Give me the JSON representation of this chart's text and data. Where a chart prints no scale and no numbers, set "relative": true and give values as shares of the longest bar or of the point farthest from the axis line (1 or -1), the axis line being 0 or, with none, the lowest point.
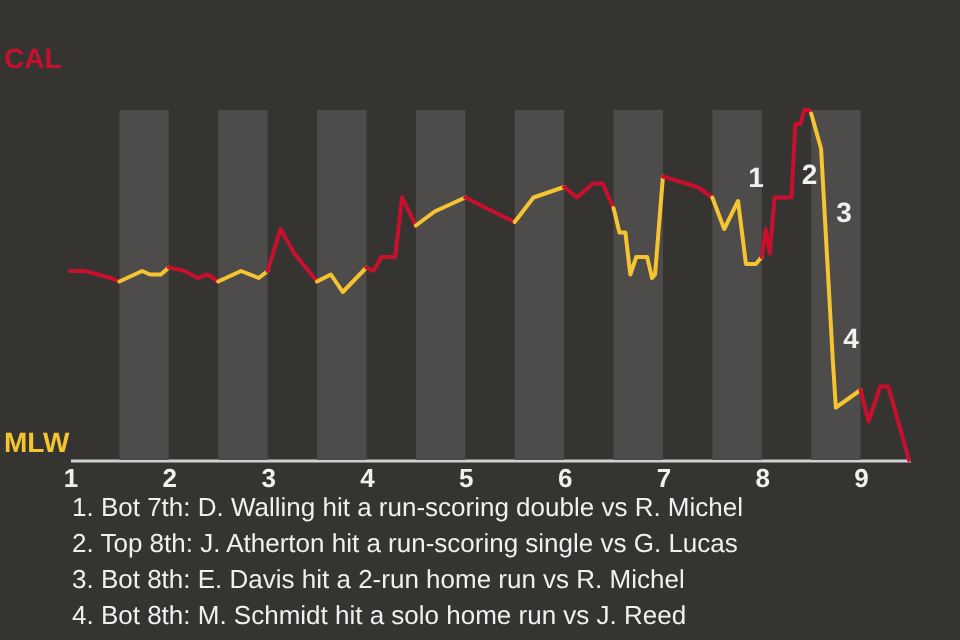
{
  "chart_data": {
    "type": "line",
    "relative": true,
    "xlim": [
      1,
      9.5
    ],
    "xticks": [
      1,
      2,
      3,
      4,
      5,
      6,
      7,
      8,
      9
    ],
    "marker": "none",
    "line_style": "solid",
    "series": [
      {
        "color": "#c8102e",
        "x": [
          1,
          1.15,
          1.41,
          1.5
        ],
        "values": [
          0.54,
          0.54,
          0.52,
          0.51
        ]
      },
      {
        "color": "#f5c431",
        "x": [
          1.5,
          1.73,
          1.81,
          1.92,
          2
        ],
        "values": [
          0.51,
          0.54,
          0.53,
          0.53,
          0.55
        ]
      },
      {
        "color": "#c8102e",
        "x": [
          2,
          2.16,
          2.29,
          2.39,
          2.5
        ],
        "values": [
          0.55,
          0.54,
          0.52,
          0.53,
          0.51
        ]
      },
      {
        "color": "#f5c431",
        "x": [
          2.5,
          2.73,
          2.91,
          3
        ],
        "values": [
          0.51,
          0.54,
          0.52,
          0.54
        ]
      },
      {
        "color": "#c8102e",
        "x": [
          3,
          3.13,
          3.27,
          3.5
        ],
        "values": [
          0.54,
          0.66,
          0.59,
          0.51
        ]
      },
      {
        "color": "#f5c431",
        "x": [
          3.5,
          3.64,
          3.76,
          4
        ],
        "values": [
          0.51,
          0.53,
          0.48,
          0.55
        ]
      },
      {
        "color": "#c8102e",
        "x": [
          4,
          4.07,
          4.15,
          4.29,
          4.36,
          4.5
        ],
        "values": [
          0.55,
          0.54,
          0.58,
          0.58,
          0.75,
          0.67
        ]
      },
      {
        "color": "#f5c431",
        "x": [
          4.5,
          4.69,
          5
        ],
        "values": [
          0.67,
          0.71,
          0.75
        ]
      },
      {
        "color": "#c8102e",
        "x": [
          5,
          5.21,
          5.5
        ],
        "values": [
          0.75,
          0.72,
          0.68
        ]
      },
      {
        "color": "#f5c431",
        "x": [
          5.5,
          5.69,
          6
        ],
        "values": [
          0.68,
          0.75,
          0.78
        ]
      },
      {
        "color": "#c8102e",
        "x": [
          6,
          6.13,
          6.29,
          6.39,
          6.5
        ],
        "values": [
          0.78,
          0.75,
          0.79,
          0.79,
          0.72
        ]
      },
      {
        "color": "#f5c431",
        "x": [
          6.5,
          6.56,
          6.62,
          6.67,
          6.73,
          6.84,
          6.89,
          6.92,
          7
        ],
        "values": [
          0.72,
          0.65,
          0.65,
          0.53,
          0.58,
          0.58,
          0.52,
          0.53,
          0.81
        ]
      },
      {
        "color": "#c8102e",
        "x": [
          7,
          7.35,
          7.5
        ],
        "values": [
          0.81,
          0.78,
          0.75
        ]
      },
      {
        "color": "#f5c431",
        "x": [
          7.5,
          7.62,
          7.76,
          7.84,
          7.94,
          8
        ],
        "values": [
          0.75,
          0.66,
          0.74,
          0.56,
          0.56,
          0.58
        ]
      },
      {
        "color": "#c8102e",
        "x": [
          8,
          8.04,
          8.08,
          8.13,
          8.3,
          8.34,
          8.39,
          8.43,
          8.48,
          8.5
        ],
        "values": [
          0.58,
          0.66,
          0.59,
          0.75,
          0.75,
          0.96,
          0.96,
          1,
          1,
          0.99
        ]
      },
      {
        "color": "#f5c431",
        "x": [
          8.5,
          8.6,
          8.72,
          8.75,
          9
        ],
        "values": [
          0.99,
          0.89,
          0.28,
          0.15,
          0.2
        ]
      },
      {
        "color": "#c8102e",
        "x": [
          9,
          9.08,
          9.2,
          9.28,
          9.49
        ],
        "values": [
          0.2,
          0.11,
          0.21,
          0.21,
          0
        ]
      }
    ],
    "bands": [
      {
        "axis": "x",
        "from": 1.5,
        "to": 2,
        "color": "#4d4c4a"
      },
      {
        "axis": "x",
        "from": 2.5,
        "to": 3,
        "color": "#4d4c4a"
      },
      {
        "axis": "x",
        "from": 3.5,
        "to": 4,
        "color": "#4d4c4a"
      },
      {
        "axis": "x",
        "from": 4.5,
        "to": 5,
        "color": "#4d4c4a"
      },
      {
        "axis": "x",
        "from": 5.5,
        "to": 6,
        "color": "#4d4c4a"
      },
      {
        "axis": "x",
        "from": 6.5,
        "to": 7,
        "color": "#4d4c4a"
      },
      {
        "axis": "x",
        "from": 7.5,
        "to": 8,
        "color": "#4d4c4a"
      },
      {
        "axis": "x",
        "from": 8.5,
        "to": 9,
        "color": "#4d4c4a"
      }
    ],
    "annotations": [
      "CAL",
      "MLW",
      {
        "text": "1",
        "x": 7.76,
        "y": 0.74
      },
      {
        "text": "2",
        "x": 8.3,
        "y": 0.75
      },
      {
        "text": "3",
        "x": 8.65,
        "y": 0.64
      },
      {
        "text": "4",
        "x": 8.72,
        "y": 0.28
      },
      "1. Bot 7th: D. Walling hit a run-scoring double vs R. Michel",
      "2. Top 8th: J. Atherton hit a run-scoring single vs G. Lucas",
      "3. Bot 8th: E. Davis hit a 2-run home run vs R. Michel",
      "4. Bot 8th: M. Schmidt hit a solo home run vs J. Reed"
    ]
  }
}
